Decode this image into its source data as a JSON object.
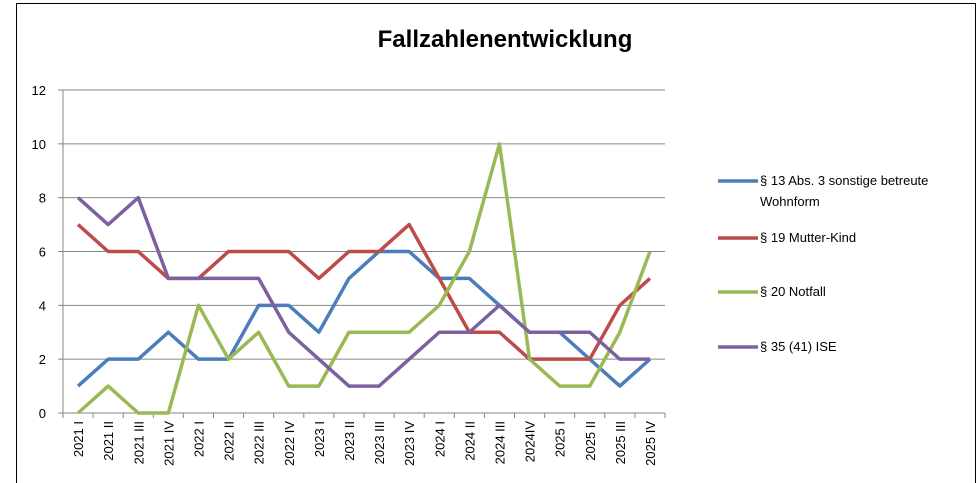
{
  "chart_data": {
    "type": "line",
    "title": "Fallzahlenentwicklung",
    "categories": [
      "2021 I",
      "2021 II",
      "2021 III",
      "2021 IV",
      "2022 I",
      "2022 II",
      "2022 III",
      "2022 IV",
      "2023 I",
      "2023 II",
      "2023 III",
      "2023 IV",
      "2024 I",
      "2024 II",
      "2024 III",
      "2024IV",
      "2025 I",
      "2025 II",
      "2025 III",
      "2025 IV"
    ],
    "series": [
      {
        "name": "§ 13 Abs. 3 sonstige betreute Wohnform",
        "color": "#4a7ebb",
        "values": [
          1,
          2,
          2,
          3,
          2,
          2,
          4,
          4,
          3,
          5,
          6,
          6,
          5,
          5,
          4,
          3,
          3,
          2,
          1,
          2
        ]
      },
      {
        "name": "§ 19 Mutter-Kind",
        "color": "#be4b48",
        "values": [
          7,
          6,
          6,
          5,
          5,
          6,
          6,
          6,
          5,
          6,
          6,
          7,
          5,
          3,
          3,
          2,
          2,
          2,
          4,
          5
        ]
      },
      {
        "name": "§ 20 Notfall",
        "color": "#98b954",
        "values": [
          0,
          1,
          0,
          0,
          4,
          2,
          3,
          1,
          1,
          3,
          3,
          3,
          4,
          6,
          10,
          2,
          1,
          1,
          3,
          6
        ]
      },
      {
        "name": "§ 35 (41) ISE",
        "color": "#7d60a0",
        "values": [
          8,
          7,
          8,
          5,
          5,
          5,
          5,
          3,
          2,
          1,
          1,
          2,
          3,
          3,
          4,
          3,
          3,
          3,
          2,
          2
        ]
      }
    ],
    "ylim": [
      0,
      12
    ],
    "yticks": [
      0,
      2,
      4,
      6,
      8,
      10,
      12
    ],
    "grid": true,
    "legend": "right"
  }
}
